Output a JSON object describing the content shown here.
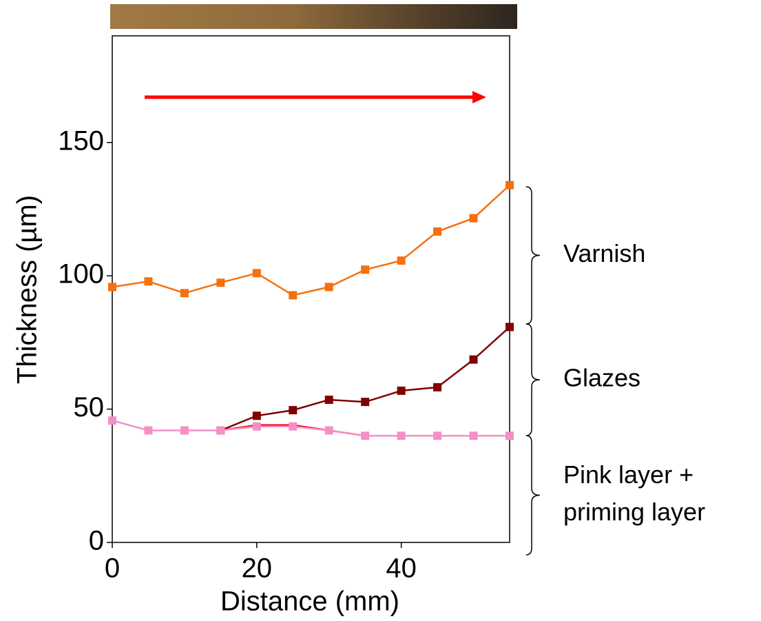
{
  "chart_data": {
    "type": "line",
    "x_label": "Distance (mm)",
    "y_label": "Thickness (µm)",
    "xlim": [
      0,
      55
    ],
    "ylim": [
      0,
      190
    ],
    "xticks": [
      0,
      20,
      40
    ],
    "yticks": [
      0,
      50,
      100,
      150
    ],
    "x": [
      0,
      5,
      10,
      15,
      20,
      25,
      30,
      35,
      40,
      45,
      50,
      55
    ],
    "series": [
      {
        "color": "#f5700f",
        "values": [
          95.8,
          97.9,
          93.5,
          97.4,
          101,
          92.7,
          95.8,
          102.3,
          105.7,
          116.6,
          121.6,
          134
        ]
      },
      {
        "color": "#800000",
        "values": [
          null,
          null,
          null,
          42,
          47.5,
          49.6,
          53.5,
          52.7,
          56.9,
          58.2,
          68.6,
          80.8
        ]
      },
      {
        "color": "#ff0000",
        "values": [
          null,
          null,
          null,
          42,
          44,
          44,
          42,
          40,
          null,
          null,
          null,
          null
        ]
      },
      {
        "color": "#f48fc8",
        "values": [
          45.7,
          42,
          42,
          42,
          43.5,
          43.5,
          42,
          40,
          40,
          40,
          40,
          40
        ]
      }
    ],
    "markers": [
      true,
      true,
      false,
      true
    ],
    "annotations": [
      {
        "text": "Varnish"
      },
      {
        "text": "Glazes"
      },
      {
        "lines": [
          "Pink layer +",
          "priming layer"
        ]
      }
    ]
  }
}
